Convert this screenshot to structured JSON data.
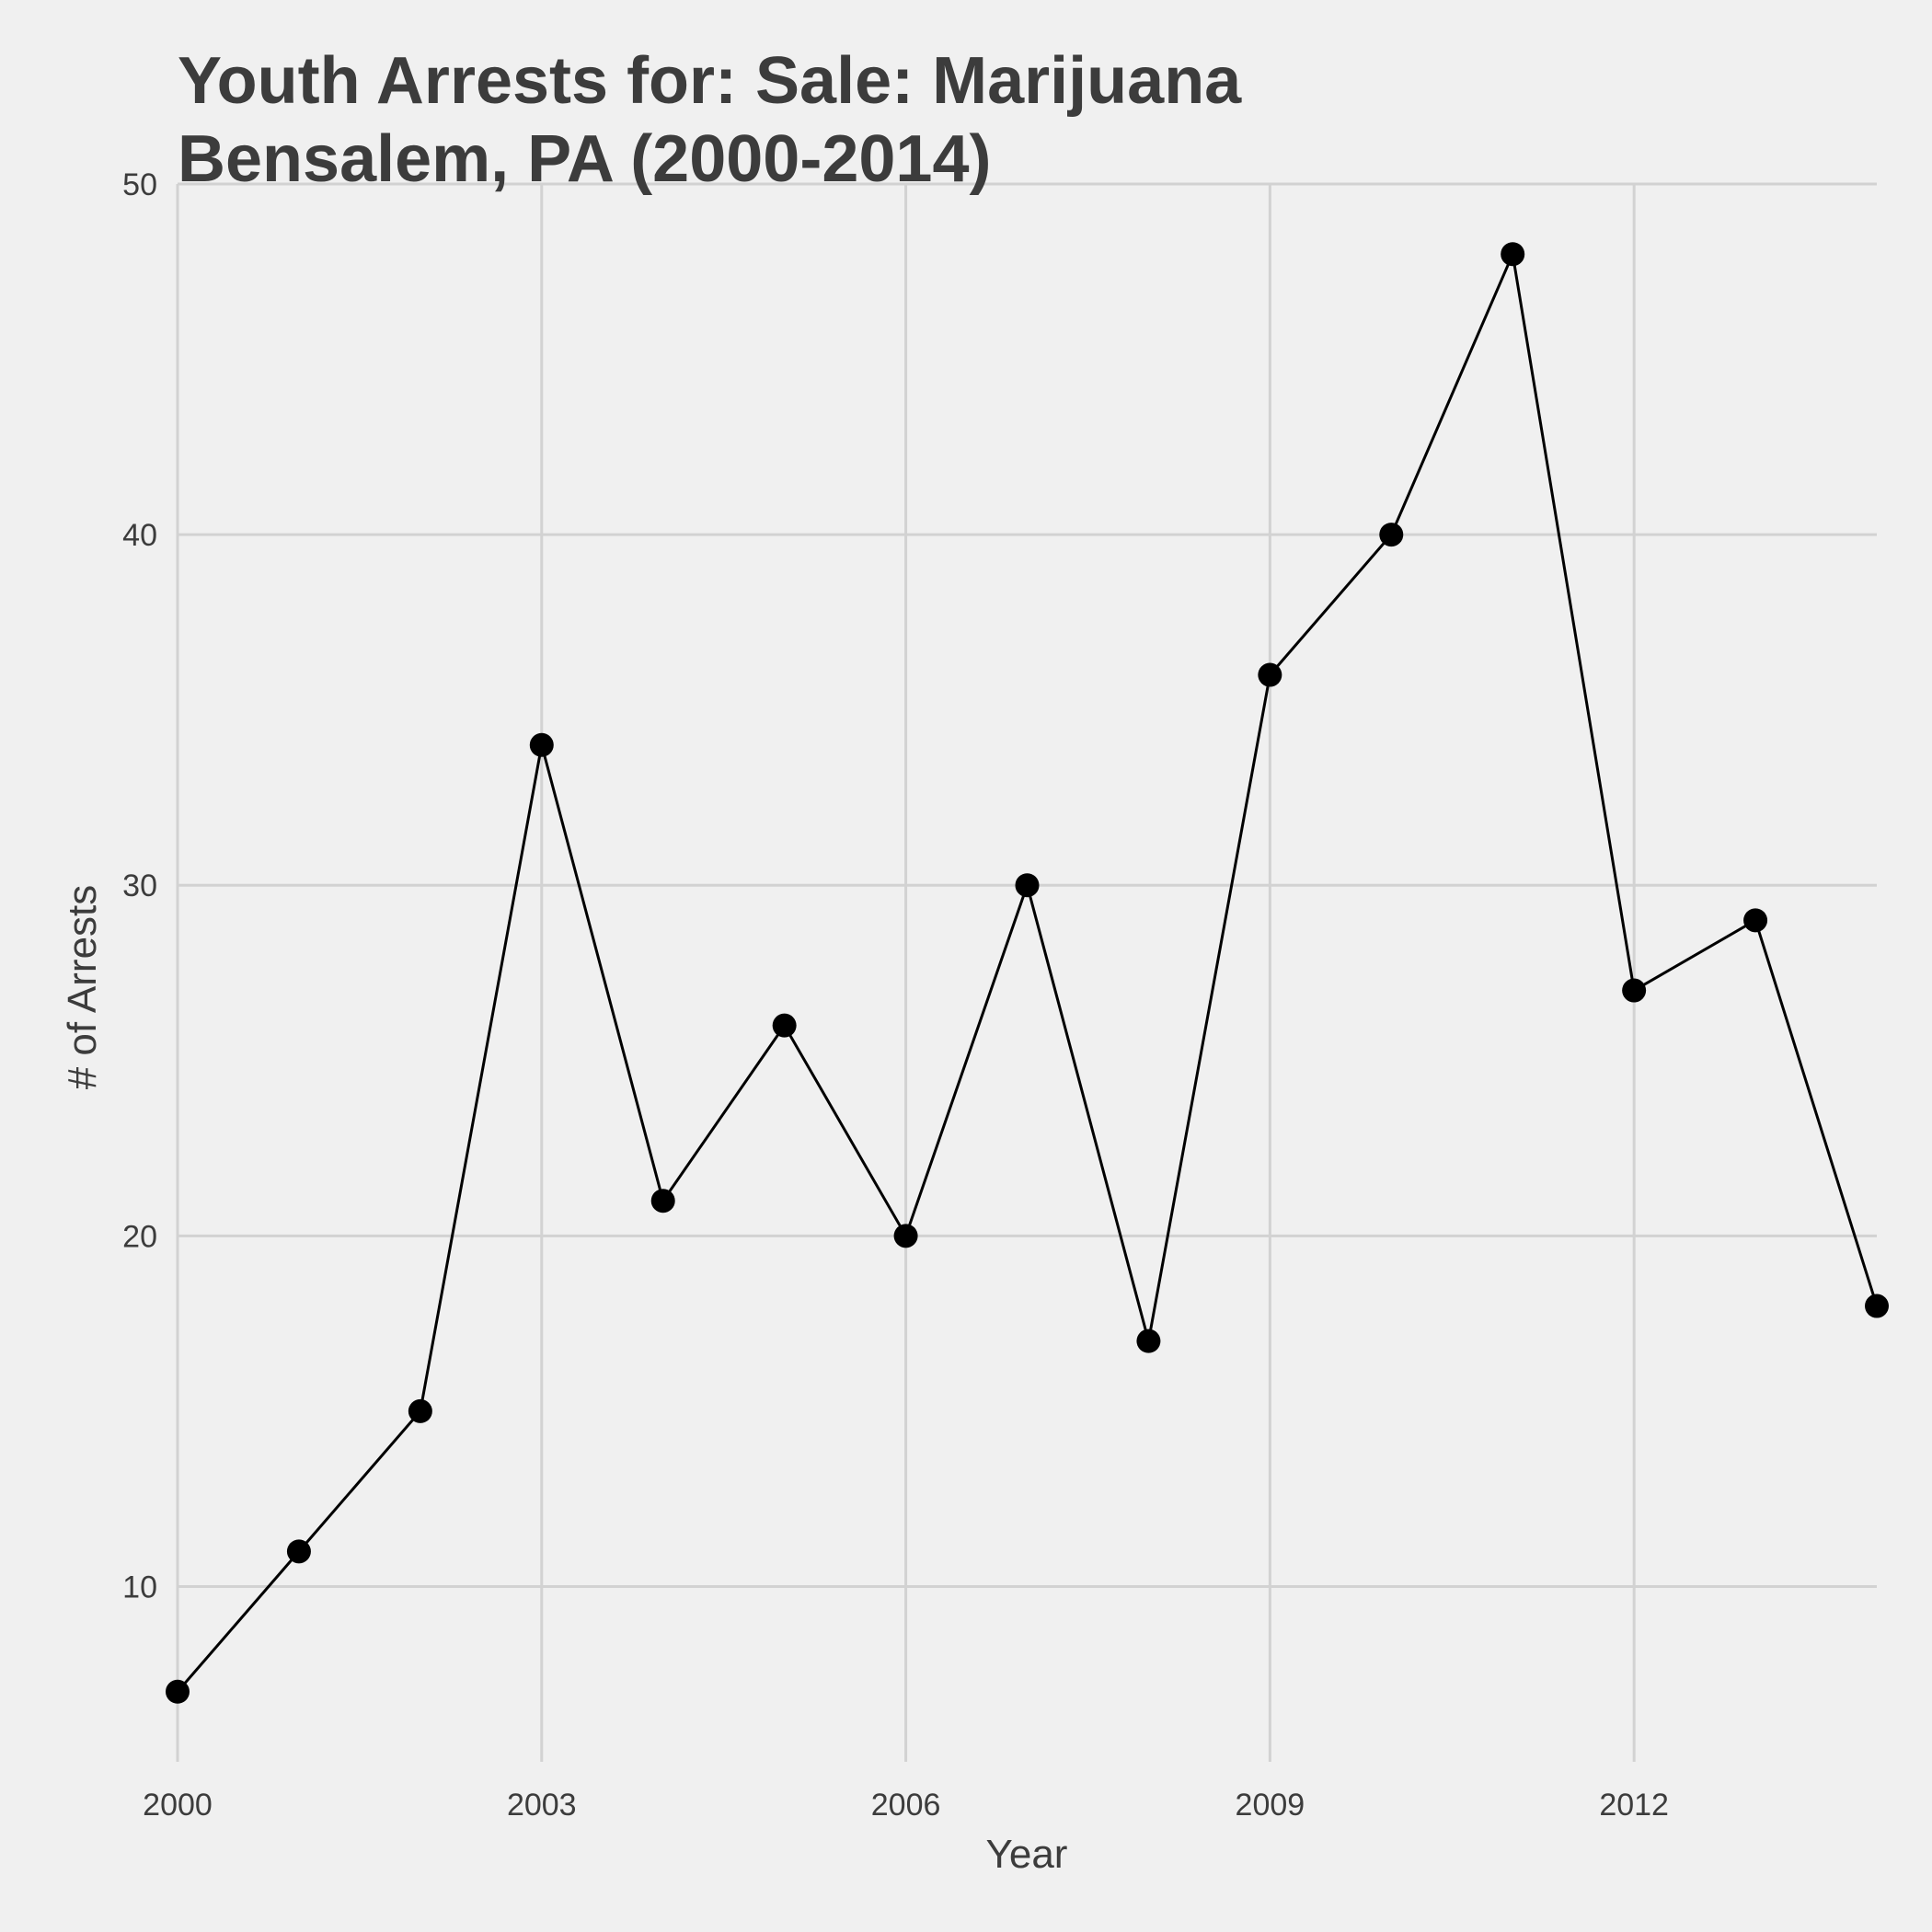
{
  "chart_data": {
    "type": "line",
    "title_lines": [
      "Youth Arrests for: Sale: Marijuana",
      "Bensalem, PA (2000-2014)"
    ],
    "xlabel": "Year",
    "ylabel": "# of Arrests",
    "x": [
      2000,
      2001,
      2002,
      2003,
      2004,
      2005,
      2006,
      2007,
      2008,
      2009,
      2010,
      2011,
      2012,
      2013,
      2014
    ],
    "series": [
      {
        "values": [
          7,
          11,
          15,
          34,
          21,
          26,
          20,
          30,
          17,
          36,
          40,
          48,
          27,
          29,
          18
        ]
      }
    ],
    "xlim": [
      2000,
      2014
    ],
    "ylim": [
      5,
      50
    ],
    "x_ticks": [
      2000,
      2003,
      2006,
      2009,
      2012
    ],
    "y_ticks": [
      10,
      20,
      30,
      40,
      50
    ],
    "grid": true,
    "line_color": "#000000",
    "point_color": "#000000",
    "background_color": "#f0f0f0",
    "grid_color": "#d2d2d2"
  }
}
